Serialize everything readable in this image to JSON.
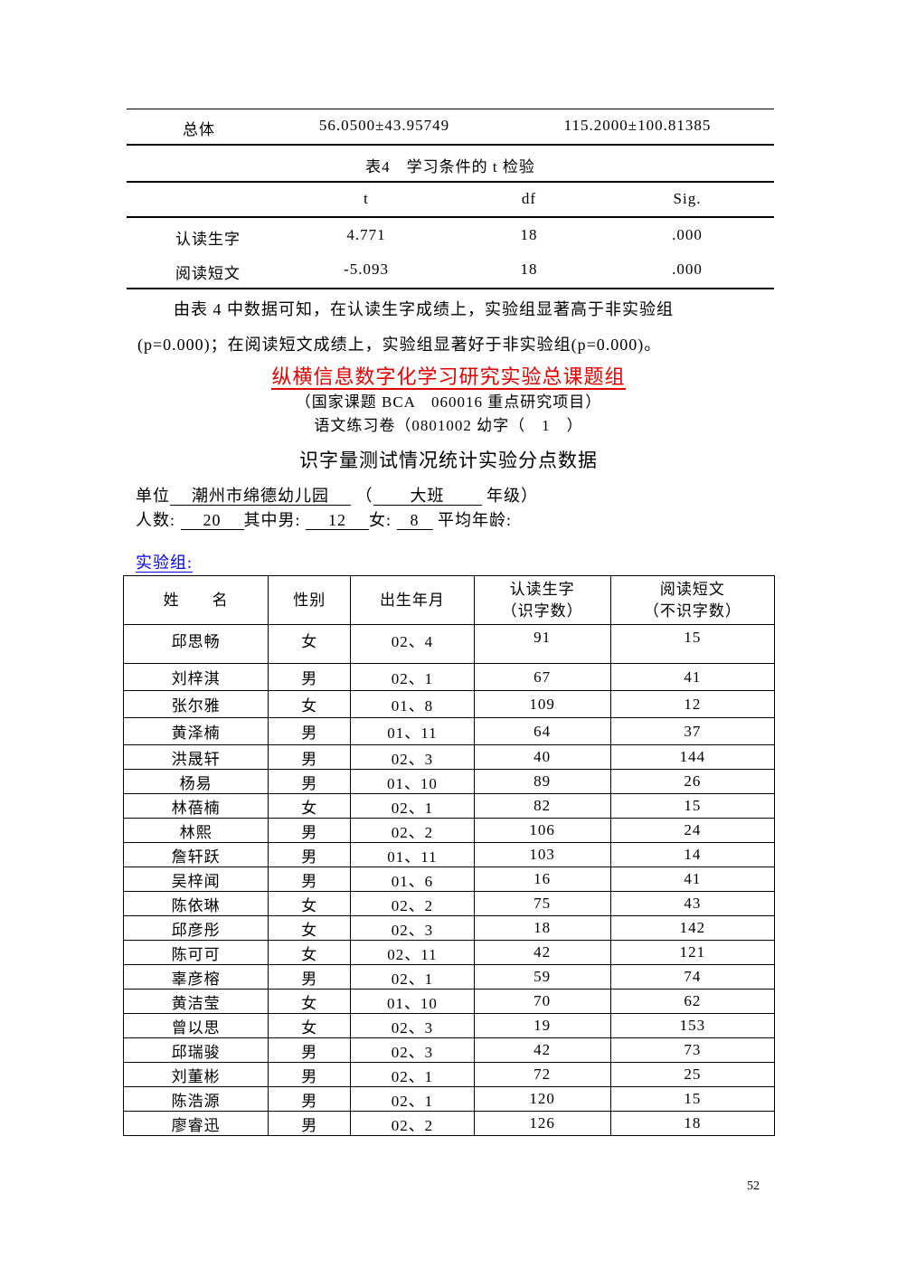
{
  "prev_table": {
    "total_row": {
      "label": "总体",
      "col1": "56.0500±43.95749",
      "col2": "115.2000±100.81385"
    }
  },
  "table4": {
    "caption": "表4　学习条件的 t 检验",
    "headers": [
      "",
      "t",
      "df",
      "Sig."
    ],
    "rows": [
      {
        "label": "认读生字",
        "t": "4.771",
        "df": "18",
        "sig": ".000"
      },
      {
        "label": "阅读短文",
        "t": "-5.093",
        "df": "18",
        "sig": ".000"
      }
    ]
  },
  "conclusion": {
    "line1": "由表 4 中数据可知，在认读生字成绩上，实验组显著高于非实验组",
    "line2": "(p=0.000)；在阅读短文成绩上，实验组显著好于非实验组(p=0.000)。"
  },
  "header": {
    "org_title": "纵横信息数字化学习研究实验总课题组",
    "org_title_color": "#e00000",
    "project": "（国家课题 BCA　060016 重点研究项目）",
    "exam": "语文练习卷（0801002 幼字（　1　）",
    "title": "识字量测试情况统计实验分点数据"
  },
  "info": {
    "unit_label": "单位",
    "unit_value": "潮州市绵德幼儿园",
    "paren_open": "（",
    "class_value": "大班",
    "grade_label": "年级）",
    "count_label": "人数:",
    "count_value": "20",
    "male_label": "其中男:",
    "male_value": "12",
    "female_label": "女:",
    "female_value": "8",
    "avg_age_label": "平均年龄:"
  },
  "group_link": {
    "label": "实验组:",
    "color": "#0000ee"
  },
  "students_table": {
    "headers": [
      "姓　　名",
      "性别",
      "出生年月",
      "认读生字",
      "（识字数）",
      "阅读短文",
      "（不识字数）"
    ],
    "rows": [
      [
        "邱思畅",
        "女",
        "02、4",
        "91",
        "15"
      ],
      [
        "刘梓淇",
        "男",
        "02、1",
        "67",
        "41"
      ],
      [
        "张尔雅",
        "女",
        "01、8",
        "109",
        "12"
      ],
      [
        "黄泽楠",
        "男",
        "01、11",
        "64",
        "37"
      ],
      [
        "洪晟轩",
        "男",
        "02、3",
        "40",
        "144"
      ],
      [
        "杨易",
        "男",
        "01、10",
        "89",
        "26"
      ],
      [
        "林蓓楠",
        "女",
        "02、1",
        "82",
        "15"
      ],
      [
        "林熙",
        "男",
        "02、2",
        "106",
        "24"
      ],
      [
        "詹轩跃",
        "男",
        "01、11",
        "103",
        "14"
      ],
      [
        "吴梓闻",
        "男",
        "01、6",
        "16",
        "41"
      ],
      [
        "陈依琳",
        "女",
        "02、2",
        "75",
        "43"
      ],
      [
        "邱彦彤",
        "女",
        "02、3",
        "18",
        "142"
      ],
      [
        "陈可可",
        "女",
        "02、11",
        "42",
        "121"
      ],
      [
        "辜彦榕",
        "男",
        "02、1",
        "59",
        "74"
      ],
      [
        "黄洁莹",
        "女",
        "01、10",
        "70",
        "62"
      ],
      [
        "曾以思",
        "女",
        "02、3",
        "19",
        "153"
      ],
      [
        "邱瑞骏",
        "男",
        "02、3",
        "42",
        "73"
      ],
      [
        "刘董彬",
        "男",
        "02、1",
        "72",
        "25"
      ],
      [
        "陈浩源",
        "男",
        "02、1",
        "120",
        "15"
      ],
      [
        "廖睿迅",
        "男",
        "02、2",
        "126",
        "18"
      ]
    ]
  },
  "page_number": "52"
}
